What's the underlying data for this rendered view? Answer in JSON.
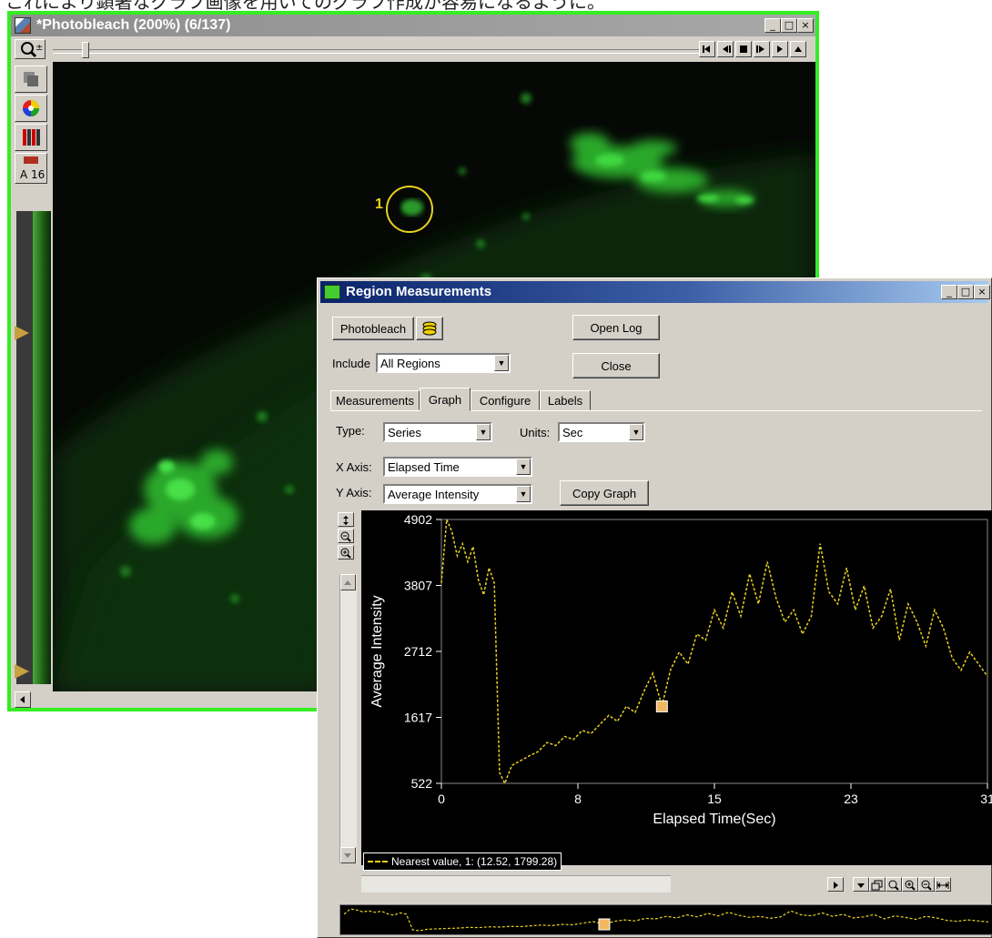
{
  "caption": "これにより顕著なグラフ画像を用いてのグラフ作成が容易になるように。",
  "photobleach_window": {
    "title": "*Photobleach (200%) (6/137)",
    "side_buttons": [
      "zoom-icon",
      "copy-icon",
      "color-wheel-icon",
      "lut-icon",
      "a16-icon"
    ],
    "side_label": "A 16",
    "roi_label": "1"
  },
  "region_window": {
    "title": "Region Measurements",
    "photobleach_button": "Photobleach",
    "open_log": "Open Log",
    "close": "Close",
    "include_label": "Include",
    "include_value": "All Regions",
    "tabs": [
      "Measurements",
      "Graph",
      "Configure",
      "Labels"
    ],
    "active_tab": "Graph",
    "type_label": "Type:",
    "type_value": "Series",
    "units_label": "Units:",
    "units_value": "Sec",
    "xaxis_label": "X Axis:",
    "xaxis_value": "Elapsed Time",
    "yaxis_label": "Y Axis:",
    "yaxis_value": "Average Intensity",
    "copy_graph": "Copy Graph",
    "legend_text": "Nearest value, 1: (12.52, 1799.28)"
  },
  "colors": {
    "series": "#e8d020",
    "marker": "#f4b860",
    "image_green": "#33ee22"
  },
  "chart_data": {
    "type": "line",
    "xlabel": "Elapsed Time(Sec)",
    "ylabel": "Average Intensity",
    "xticks": [
      "0",
      "8",
      "15",
      "23",
      "31"
    ],
    "yticks": [
      "4902",
      "3807",
      "2712",
      "1617",
      "522"
    ],
    "xlim": [
      0,
      31
    ],
    "ylim": [
      522,
      4902
    ],
    "highlight_point": [
      12.52,
      1799.28
    ],
    "series": [
      {
        "x": [
          0,
          0.3,
          0.6,
          0.9,
          1.2,
          1.5,
          1.8,
          2.1,
          2.4,
          2.7,
          3.0,
          3.3,
          3.6,
          4.0,
          4.5,
          5.0,
          5.5,
          6.0,
          6.5,
          7.0,
          7.5,
          8.0,
          8.5,
          9.0,
          9.5,
          10.0,
          10.5,
          11.0,
          11.5,
          12.0,
          12.52,
          13.0,
          13.5,
          14.0,
          14.5,
          15.0,
          15.5,
          16.0,
          16.5,
          17.0,
          17.5,
          18.0,
          18.5,
          19.0,
          19.5,
          20.0,
          20.5,
          21.0,
          21.5,
          22.0,
          22.5,
          23.0,
          23.5,
          24.0,
          24.5,
          25.0,
          25.5,
          26.0,
          26.5,
          27.0,
          27.5,
          28.0,
          28.5,
          29.0,
          29.5,
          30.0,
          30.5,
          31.0
        ],
        "y": [
          3850,
          4902,
          4700,
          4300,
          4500,
          4200,
          4450,
          3900,
          3650,
          4100,
          3850,
          700,
          522,
          820,
          900,
          980,
          1050,
          1200,
          1150,
          1300,
          1250,
          1400,
          1350,
          1500,
          1650,
          1550,
          1800,
          1700,
          2050,
          2350,
          1799,
          2400,
          2700,
          2500,
          3000,
          2900,
          3400,
          3100,
          3700,
          3300,
          4000,
          3500,
          4200,
          3600,
          3200,
          3400,
          3000,
          3300,
          4500,
          3700,
          3500,
          4100,
          3400,
          3800,
          3100,
          3300,
          3750,
          2900,
          3500,
          3200,
          2800,
          3400,
          3100,
          2600,
          2400,
          2700,
          2500,
          2300
        ]
      }
    ]
  }
}
